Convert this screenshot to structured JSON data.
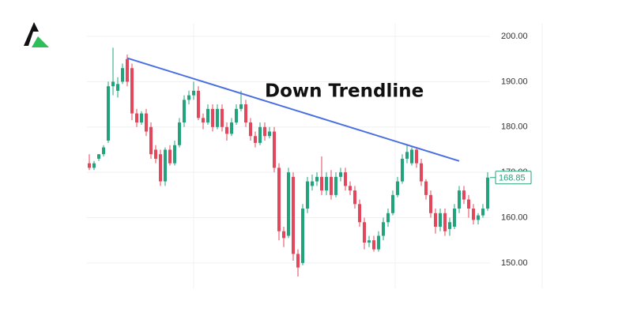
{
  "chart_data": {
    "type": "candlestick",
    "annotation": "Down Trendline",
    "up_color": "#22a37c",
    "down_color": "#e2475b",
    "trend_color": "#4a6fe0",
    "open": [
      172,
      171,
      173,
      174,
      177,
      189,
      188,
      190,
      195,
      193,
      183,
      181,
      183,
      180,
      175,
      174,
      168,
      175,
      172,
      176,
      181,
      186,
      187,
      188,
      182,
      181,
      184,
      180,
      184,
      180,
      178.5,
      181,
      184,
      185,
      181,
      178,
      176.5,
      180,
      178,
      179,
      171,
      157,
      156,
      169,
      152,
      150,
      162,
      167,
      168,
      169,
      166,
      169,
      165,
      169,
      170,
      167,
      166,
      163,
      159,
      154.5,
      155,
      153,
      156,
      159,
      161,
      165,
      168,
      173,
      172,
      175,
      172,
      168,
      165,
      161,
      158,
      161,
      157.5,
      158,
      162,
      166,
      164,
      162,
      159.5,
      160.5,
      162
    ],
    "high": [
      174,
      172.5,
      174,
      176,
      190,
      197.5,
      191,
      194,
      196,
      194,
      184,
      183.5,
      184,
      181,
      176,
      175,
      175.5,
      176,
      177,
      182,
      187,
      188,
      190,
      189,
      183,
      185,
      185,
      185,
      185,
      181,
      182,
      185,
      188,
      186,
      182,
      179,
      181,
      181,
      180,
      180,
      172,
      158,
      171,
      170,
      153,
      163,
      169,
      169.5,
      170,
      173.5,
      170,
      170.5,
      170,
      171,
      171,
      168,
      167,
      164,
      160,
      156,
      156,
      157,
      160,
      162,
      166,
      169,
      174,
      176,
      175.5,
      175.5,
      173,
      168.5,
      166,
      162,
      162,
      162,
      160,
      163,
      167,
      167,
      165,
      163,
      161,
      163,
      170
    ],
    "low": [
      170.5,
      170.5,
      172.5,
      173.5,
      176.5,
      187,
      186.5,
      189.5,
      189,
      181.5,
      180,
      180.5,
      178,
      173,
      172,
      167,
      167,
      171.5,
      171.5,
      175.5,
      180,
      185,
      186,
      181.5,
      179.5,
      180.5,
      179,
      179.5,
      179,
      177,
      178,
      180.5,
      183.5,
      180,
      177,
      175.5,
      176,
      177,
      177.5,
      170,
      155,
      153.5,
      155.5,
      150.5,
      147,
      149.5,
      161,
      166,
      167,
      165,
      165,
      164,
      164.5,
      168,
      166,
      165,
      162,
      158,
      153,
      153.5,
      152.5,
      152.5,
      155,
      158,
      160.5,
      164.5,
      167.5,
      172,
      171.5,
      171,
      167,
      164,
      160,
      156.5,
      157,
      156,
      156,
      157.5,
      161,
      163,
      160,
      158.5,
      158.5,
      160,
      161.5
    ],
    "close": [
      171,
      172,
      174,
      175.5,
      189,
      190,
      189.5,
      193,
      190,
      183,
      181,
      183,
      179,
      174,
      173,
      168,
      175,
      172,
      176,
      181,
      186,
      187,
      188,
      182,
      181,
      184,
      180,
      184,
      180,
      178.5,
      181,
      184,
      185,
      181,
      178,
      176.5,
      180,
      178,
      179,
      171,
      157,
      155.5,
      170,
      152,
      149,
      162,
      168,
      168,
      169,
      166,
      169,
      165,
      169,
      170,
      167,
      166,
      163,
      159,
      154.5,
      155,
      153,
      156,
      159,
      161,
      165,
      168,
      173,
      174.5,
      175,
      172,
      168,
      165,
      161,
      158,
      161,
      157,
      159,
      162,
      166,
      164,
      162,
      159.5,
      160.5,
      162,
      168.85
    ],
    "last_price_label": "168.85",
    "trendline": {
      "start_index": 8,
      "start_value": 195.2,
      "end_index": 78,
      "end_value": 172.5
    },
    "ylim": [
      144.4,
      202.8
    ],
    "yticks": [
      {
        "value": 150,
        "label": "150.00"
      },
      {
        "value": 160,
        "label": "160.00"
      },
      {
        "value": 170,
        "label": "170.00"
      },
      {
        "value": 180,
        "label": "180.00"
      },
      {
        "value": 190,
        "label": "190.00"
      },
      {
        "value": 200,
        "label": "200.00"
      }
    ],
    "grid": true
  }
}
